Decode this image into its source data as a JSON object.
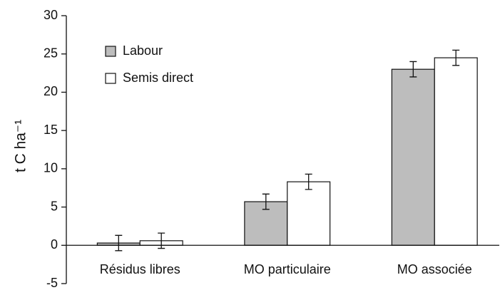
{
  "chart_data": {
    "type": "bar",
    "ylabel": "t C ha⁻¹",
    "categories": [
      "Résidus libres",
      "MO particulaire",
      "MO associée"
    ],
    "series": [
      {
        "name": "Labour",
        "color": "#bdbdbd",
        "values": [
          0.3,
          5.7,
          23.0
        ],
        "errors": [
          1.0,
          1.0,
          1.0
        ]
      },
      {
        "name": "Semis direct",
        "color": "#ffffff",
        "values": [
          0.6,
          8.3,
          24.5
        ],
        "errors": [
          1.0,
          1.0,
          1.0
        ]
      }
    ],
    "ylim": [
      -5,
      30
    ],
    "yticks": [
      -5,
      0,
      5,
      10,
      15,
      20,
      25,
      30
    ],
    "grid": false
  }
}
